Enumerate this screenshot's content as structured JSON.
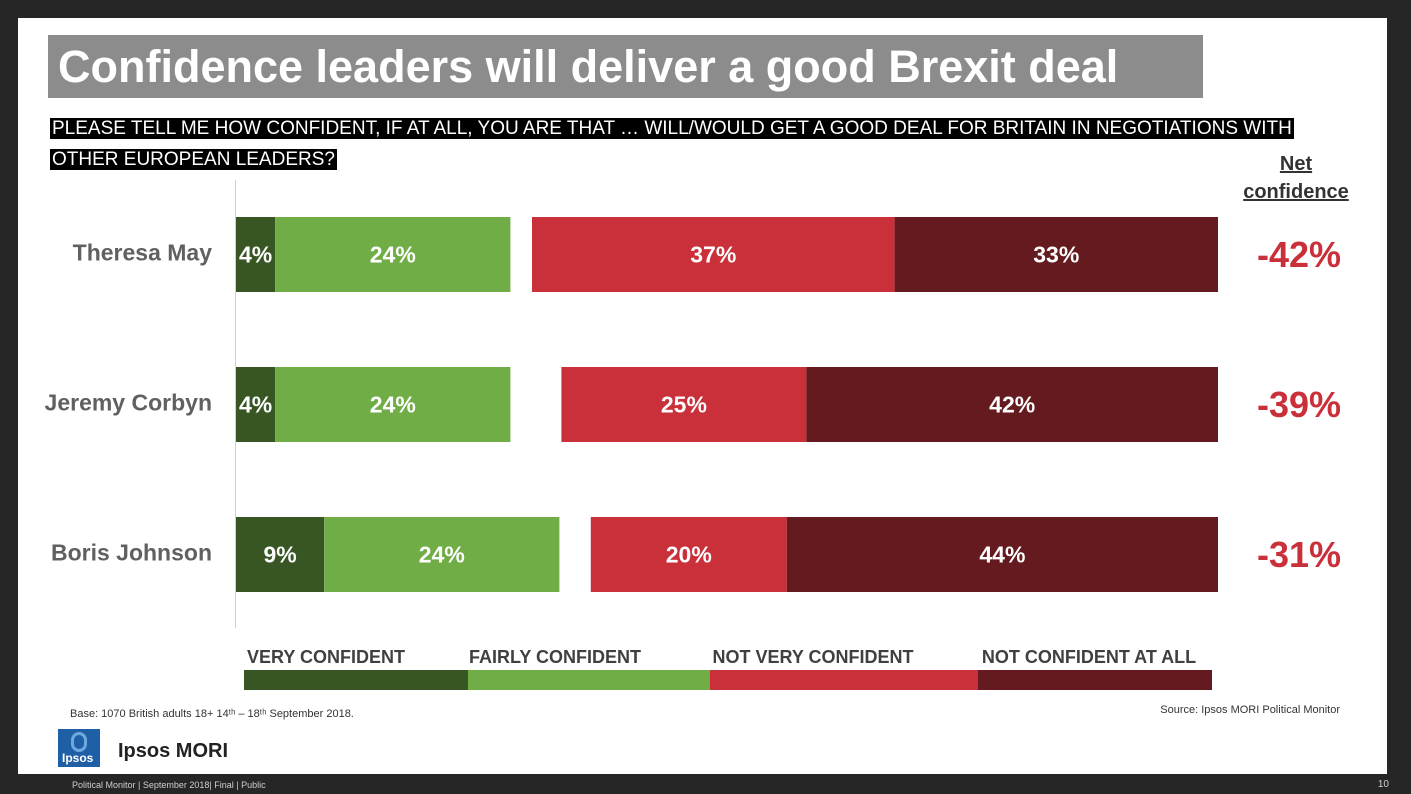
{
  "title": "Confidence leaders will deliver a good Brexit deal",
  "question_line1": "PLEASE TELL ME HOW CONFIDENT, IF AT ALL, YOU ARE THAT  … WILL/WOULD GET A GOOD DEAL FOR BRITAIN IN NEGOTIATIONS WITH",
  "question_line2": "OTHER EUROPEAN LEADERS?",
  "net_header_line1": "Net",
  "net_header_line2": "confidence",
  "colors": {
    "very_confident": "#375623",
    "fairly_confident": "#70ad47",
    "not_very_confident": "#c9303a",
    "not_confident_at_all": "#641a1f",
    "net_text": "#c9303a"
  },
  "chart_data": {
    "type": "bar",
    "orientation": "horizontal-diverging",
    "title": "Confidence leaders will deliver a good Brexit deal",
    "categories": [
      "Theresa May",
      "Jeremy Corbyn",
      "Boris Johnson"
    ],
    "series": [
      {
        "name": "VERY CONFIDENT",
        "values": [
          4,
          4,
          9
        ],
        "labels": [
          "4%",
          "4%",
          "9%"
        ]
      },
      {
        "name": "FAIRLY CONFIDENT",
        "values": [
          24,
          24,
          24
        ],
        "labels": [
          "24%",
          "24%",
          "24%"
        ]
      },
      {
        "name": "NOT VERY CONFIDENT",
        "values": [
          37,
          25,
          20
        ],
        "labels": [
          "37%",
          "25%",
          "20%"
        ]
      },
      {
        "name": "NOT CONFIDENT AT ALL",
        "values": [
          33,
          42,
          44
        ],
        "labels": [
          "33%",
          "42%",
          "44%"
        ]
      }
    ],
    "net_confidence": [
      "-42%",
      "-39%",
      "-31%"
    ],
    "legend": [
      "VERY CONFIDENT",
      "FAIRLY CONFIDENT",
      "NOT VERY CONFIDENT",
      "NOT CONFIDENT AT ALL"
    ],
    "legend_position": "bottom"
  },
  "base_text": "Base:  1070 British adults 18+ 14ᵗʰ – 18ᵗʰ September 2018.",
  "source_text": "Source: Ipsos MORI Political Monitor",
  "logo_text": "Ipsos",
  "brand_text": "Ipsos MORI",
  "footer_text": "Political Monitor | September 2018| Final | Public",
  "page_number": "10"
}
